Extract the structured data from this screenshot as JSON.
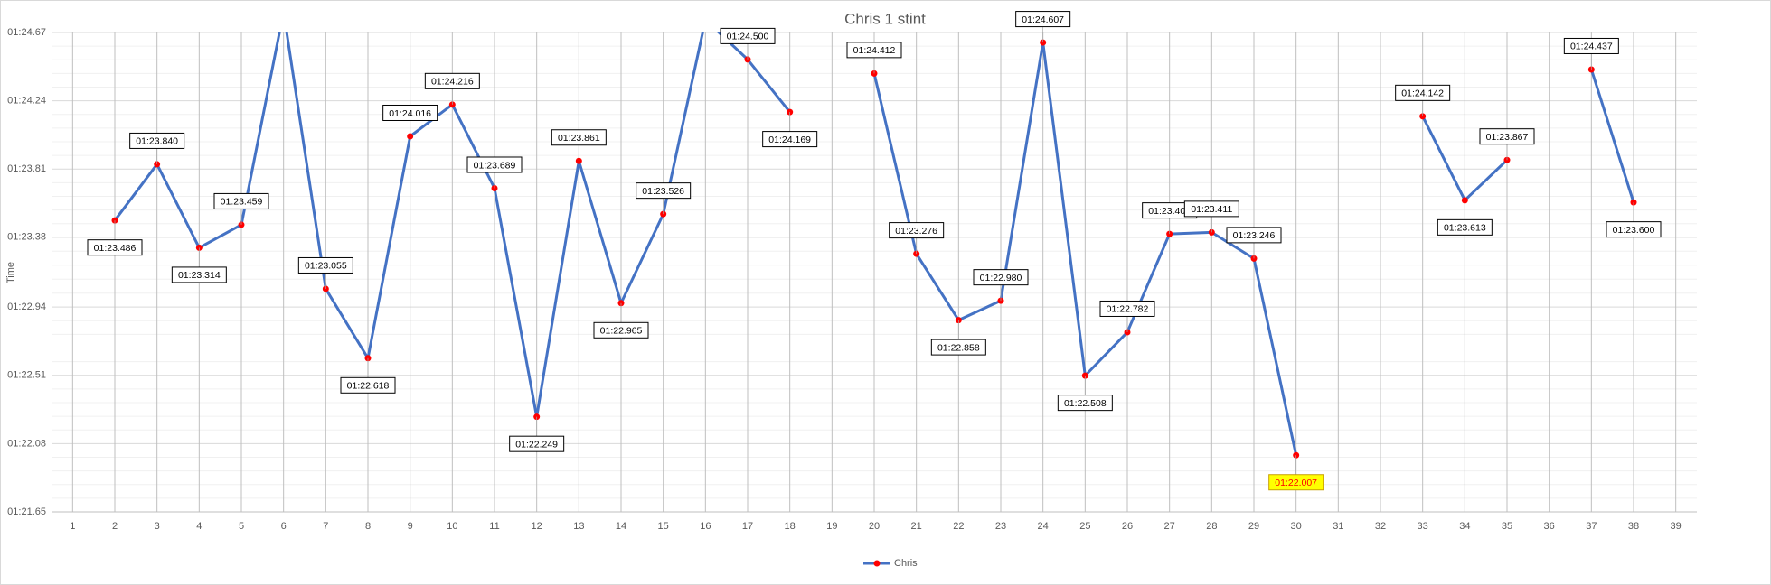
{
  "chart_data": {
    "type": "line",
    "title": "Chris 1 stint",
    "y_label": "Time",
    "categories": [
      "1",
      "2",
      "3",
      "4",
      "5",
      "6",
      "7",
      "8",
      "9",
      "10",
      "11",
      "12",
      "13",
      "14",
      "15",
      "16",
      "17",
      "18",
      "19",
      "20",
      "21",
      "22",
      "23",
      "24",
      "25",
      "26",
      "27",
      "28",
      "29",
      "30",
      "31",
      "32",
      "33",
      "34",
      "35",
      "36",
      "37",
      "38",
      "39"
    ],
    "series": [
      {
        "name": "Chris",
        "color": "#4472c4",
        "marker_color": "#ff0000",
        "values": [
          null,
          83.486,
          83.84,
          83.314,
          83.459,
          84.8,
          83.055,
          82.618,
          84.016,
          84.216,
          83.689,
          82.249,
          83.861,
          82.965,
          83.526,
          84.75,
          84.5,
          84.169,
          null,
          84.412,
          83.276,
          82.858,
          82.98,
          84.607,
          82.508,
          82.782,
          83.401,
          83.411,
          83.246,
          82.007,
          null,
          null,
          84.142,
          83.613,
          83.867,
          null,
          84.437,
          83.6,
          null
        ],
        "value_labels": [
          null,
          "01:23.486",
          "01:23.840",
          "01:23.314",
          "01:23.459",
          null,
          "01:23.055",
          "01:22.618",
          "01:24.016",
          "01:24.216",
          "01:23.689",
          "01:22.249",
          "01:23.861",
          "01:22.965",
          "01:23.526",
          null,
          "01:24.500",
          "01:24.169",
          null,
          "01:24.412",
          "01:23.276",
          "01:22.858",
          "01:22.980",
          "01:24.607",
          "01:22.508",
          "01:22.782",
          "01:23.401",
          "01:23.411",
          "01:23.246",
          "01:22.007",
          null,
          null,
          "01:24.142",
          "01:23.613",
          "01:23.867",
          null,
          "01:24.437",
          "01:23.600",
          null
        ]
      }
    ],
    "ylim": [
      81.65,
      84.67
    ],
    "yticks": [
      {
        "value": 81.65,
        "label": "01:21.65"
      },
      {
        "value": 82.08,
        "label": "01:22.08"
      },
      {
        "value": 82.51,
        "label": "01:22.51"
      },
      {
        "value": 82.94,
        "label": "01:22.94"
      },
      {
        "value": 83.38,
        "label": "01:23.38"
      },
      {
        "value": 83.81,
        "label": "01:23.81"
      },
      {
        "value": 84.24,
        "label": "01:24.24"
      },
      {
        "value": 84.67,
        "label": "01:24.67"
      }
    ],
    "grid": true,
    "legend": "bottom",
    "highlight_minimum": true,
    "highlight_fill": "#ffff00",
    "highlight_text_color": "#ff0000"
  }
}
